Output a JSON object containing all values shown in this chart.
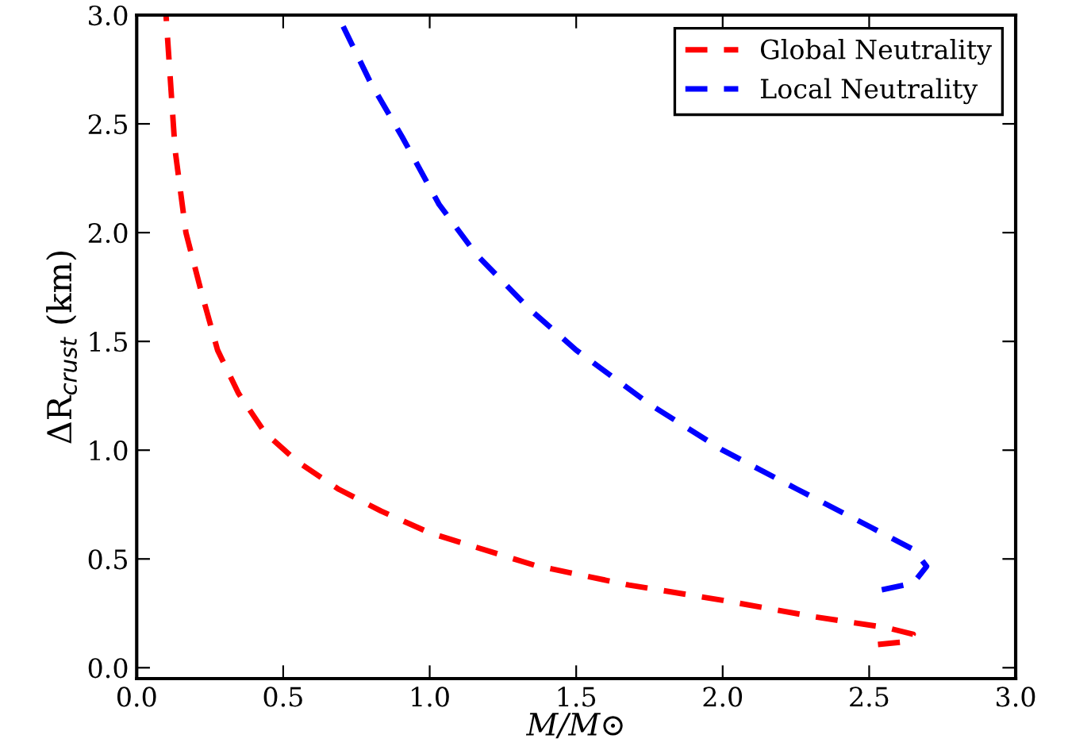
{
  "chart_data": {
    "type": "line",
    "xlabel": "M/M⊙",
    "ylabel": "ΔR$_{crust}$ (km)",
    "xlim": [
      0.0,
      3.0
    ],
    "ylim": [
      -0.05,
      3.0
    ],
    "xticks": [
      {
        "value": 0,
        "label": "0.0"
      },
      {
        "value": 0.5,
        "label": "0.5"
      },
      {
        "value": 1,
        "label": "1.0"
      },
      {
        "value": 1.5,
        "label": "1.5"
      },
      {
        "value": 2,
        "label": "2.0"
      },
      {
        "value": 2.5,
        "label": "2.5"
      },
      {
        "value": 3,
        "label": "3.0"
      }
    ],
    "yticks": [
      {
        "value": 0,
        "label": "0.0"
      },
      {
        "value": 0.5,
        "label": "0.5"
      },
      {
        "value": 1,
        "label": "1.0"
      },
      {
        "value": 1.5,
        "label": "1.5"
      },
      {
        "value": 2,
        "label": "2.0"
      },
      {
        "value": 2.5,
        "label": "2.5"
      },
      {
        "value": 3,
        "label": "3.0"
      }
    ],
    "legend": "top right",
    "grid": false,
    "line_style": "dashed",
    "marker": "none",
    "series": [
      {
        "name": "Global Neutrality",
        "color": "#ff0000",
        "x": [
          0.1,
          0.131,
          0.168,
          0.222,
          0.276,
          0.348,
          0.438,
          0.546,
          0.69,
          0.834,
          1.0,
          1.36,
          1.68,
          2.0,
          2.31,
          2.56,
          2.65,
          2.63,
          2.53
        ],
        "values": [
          3.0,
          2.38,
          2.0,
          1.72,
          1.46,
          1.26,
          1.08,
          0.95,
          0.82,
          0.72,
          0.62,
          0.47,
          0.38,
          0.31,
          0.235,
          0.184,
          0.154,
          0.12,
          0.107
        ]
      },
      {
        "name": "Local Neutrality",
        "color": "#0000ff",
        "x": [
          0.686,
          0.798,
          0.906,
          1.032,
          1.159,
          1.34,
          1.5,
          1.752,
          2.0,
          2.255,
          2.507,
          2.651,
          2.696,
          2.651,
          2.543
        ],
        "values": [
          3.0,
          2.69,
          2.44,
          2.13,
          1.9,
          1.65,
          1.46,
          1.21,
          1.0,
          0.82,
          0.645,
          0.543,
          0.466,
          0.389,
          0.358
        ]
      }
    ]
  }
}
